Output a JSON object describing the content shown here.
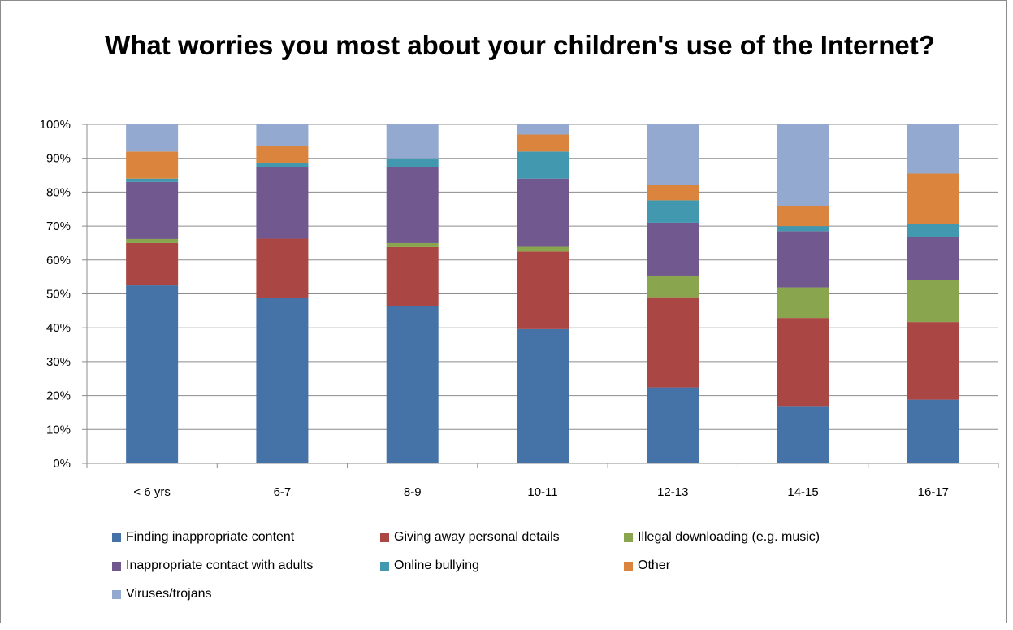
{
  "chart_data": {
    "type": "bar",
    "stacked": true,
    "percent_stacked": true,
    "title": "What worries you most about your children's use of the Internet?",
    "xlabel": "",
    "ylabel": "",
    "ylim": [
      0,
      100
    ],
    "y_ticks": [
      "0%",
      "10%",
      "20%",
      "30%",
      "40%",
      "50%",
      "60%",
      "70%",
      "80%",
      "90%",
      "100%"
    ],
    "grid": true,
    "legend_position": "bottom",
    "categories": [
      "< 6 yrs",
      "6-7",
      "8-9",
      "10-11",
      "12-13",
      "14-15",
      "16-17"
    ],
    "series": [
      {
        "name": "Finding inappropriate content",
        "color": "#4572a7",
        "values": [
          52.5,
          48.7,
          46.3,
          39.6,
          22.4,
          16.7,
          18.8
        ]
      },
      {
        "name": "Giving away personal details",
        "color": "#aa4643",
        "values": [
          12.5,
          17.6,
          17.5,
          22.9,
          26.6,
          26.2,
          22.9
        ]
      },
      {
        "name": "Illegal downloading (e.g. music)",
        "color": "#89a54e",
        "values": [
          1.2,
          0,
          1.2,
          1.4,
          6.4,
          9.0,
          12.5
        ]
      },
      {
        "name": "Inappropriate contact with adults",
        "color": "#71588f",
        "values": [
          16.8,
          21.0,
          22.5,
          20.1,
          15.6,
          16.6,
          12.5
        ]
      },
      {
        "name": "Online bullying",
        "color": "#4198af",
        "values": [
          1.0,
          1.4,
          2.5,
          8.0,
          6.6,
          1.5,
          4.0
        ]
      },
      {
        "name": "Other",
        "color": "#db843d",
        "values": [
          8.0,
          5.0,
          0,
          5.0,
          4.6,
          6.0,
          14.8
        ]
      },
      {
        "name": "Viruses/trojans",
        "color": "#93a9cf",
        "values": [
          8.0,
          6.3,
          10.0,
          3.0,
          17.8,
          24.0,
          14.5
        ]
      }
    ]
  }
}
